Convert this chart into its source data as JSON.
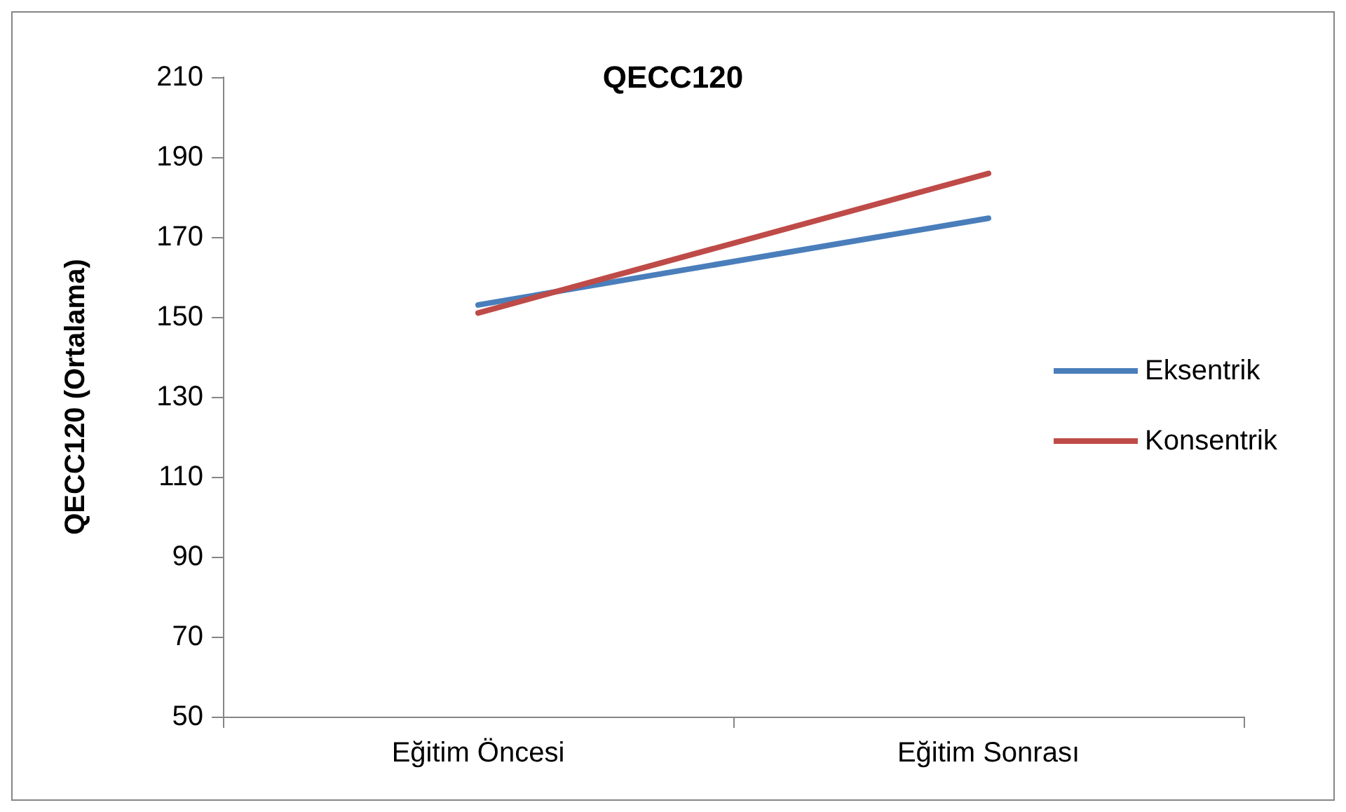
{
  "chart_data": {
    "type": "line",
    "title": "QECC120",
    "ylabel": "QECC120 (Ortalama)",
    "categories": [
      "Eğitim Öncesi",
      "Eğitim Sonrası"
    ],
    "series": [
      {
        "name": "Eksentrik",
        "color": "#4a7ebb",
        "values": [
          153,
          174.7
        ]
      },
      {
        "name": "Konsentrik",
        "color": "#be4b48",
        "values": [
          151,
          185.9
        ]
      }
    ],
    "ylim": [
      50,
      210
    ],
    "yticks": [
      50,
      70,
      90,
      110,
      130,
      150,
      170,
      190,
      210
    ],
    "grid": false,
    "legend": "right",
    "marker": "none",
    "line_style": "solid"
  }
}
